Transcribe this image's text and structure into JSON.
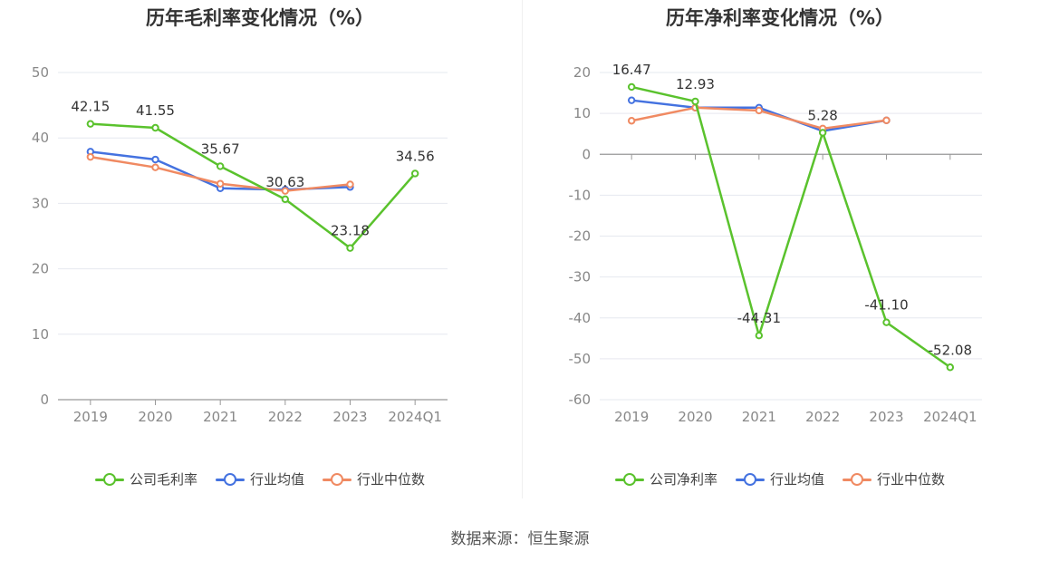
{
  "source_text": "数据来源：恒生聚源",
  "chart_data": [
    {
      "type": "line",
      "title": "历年毛利率变化情况（%）",
      "categories": [
        "2019",
        "2020",
        "2021",
        "2022",
        "2023",
        "2024Q1"
      ],
      "ylim": [
        0,
        50
      ],
      "yticks": [
        0,
        10,
        20,
        30,
        40,
        50
      ],
      "grid": true,
      "legend_position": "bottom",
      "series": [
        {
          "name": "公司毛利率",
          "color": "#5ac22d",
          "values": [
            42.15,
            41.55,
            35.67,
            30.63,
            23.18,
            34.56
          ],
          "show_labels": true
        },
        {
          "name": "行业均值",
          "color": "#4472e0",
          "values": [
            37.9,
            36.7,
            32.3,
            32.1,
            32.5,
            null
          ],
          "show_labels": false
        },
        {
          "name": "行业中位数",
          "color": "#f08a62",
          "values": [
            37.1,
            35.5,
            33.0,
            31.9,
            32.9,
            null
          ],
          "show_labels": false
        }
      ]
    },
    {
      "type": "line",
      "title": "历年净利率变化情况（%）",
      "categories": [
        "2019",
        "2020",
        "2021",
        "2022",
        "2023",
        "2024Q1"
      ],
      "ylim": [
        -60,
        20
      ],
      "yticks": [
        -60,
        -50,
        -40,
        -30,
        -20,
        -10,
        0,
        10,
        20
      ],
      "grid": true,
      "legend_position": "bottom",
      "series": [
        {
          "name": "公司净利率",
          "color": "#5ac22d",
          "values": [
            16.47,
            12.93,
            -44.31,
            5.28,
            -41.1,
            -52.08
          ],
          "labels": [
            "16.47",
            "12.93",
            "-44.31",
            "5.28",
            "-41.10",
            "-52.08"
          ],
          "show_labels": true
        },
        {
          "name": "行业均值",
          "color": "#4472e0",
          "values": [
            13.2,
            11.4,
            11.4,
            5.7,
            8.3,
            null
          ],
          "show_labels": false
        },
        {
          "name": "行业中位数",
          "color": "#f08a62",
          "values": [
            8.2,
            11.4,
            10.7,
            6.3,
            8.3,
            null
          ],
          "show_labels": false
        }
      ]
    }
  ]
}
